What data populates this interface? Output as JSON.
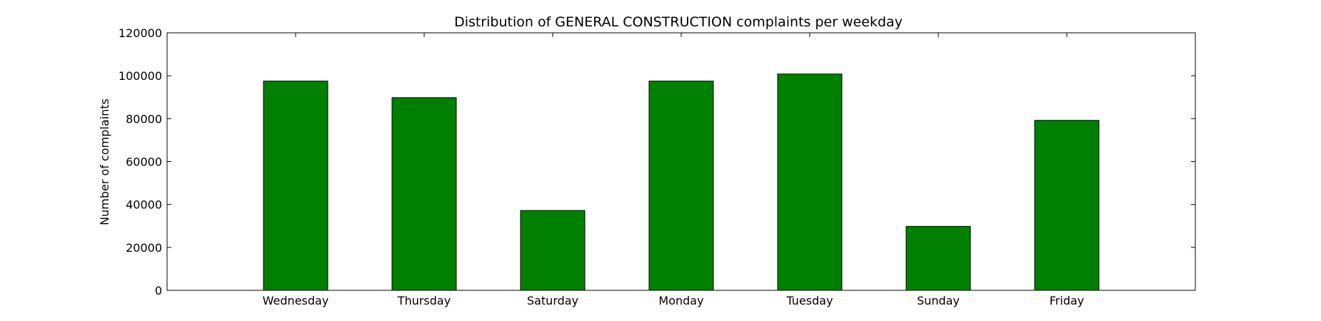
{
  "chart_data": {
    "type": "bar",
    "title": "Distribution of  GENERAL CONSTRUCTION complaints per weekday",
    "xlabel": "",
    "ylabel": "Number of complaints",
    "categories": [
      "Wednesday",
      "Thursday",
      "Saturday",
      "Monday",
      "Tuesday",
      "Sunday",
      "Friday"
    ],
    "values": [
      97500,
      89800,
      37200,
      97500,
      100800,
      29800,
      79200
    ],
    "ylim": [
      0,
      120000
    ],
    "yticks": [
      0,
      20000,
      40000,
      60000,
      80000,
      100000,
      120000
    ],
    "ytick_labels": [
      "0",
      "20000",
      "40000",
      "60000",
      "80000",
      "100000",
      "120000"
    ],
    "grid": false,
    "legend": "none",
    "bar_color": "#008000",
    "edge_color": "#000000"
  }
}
